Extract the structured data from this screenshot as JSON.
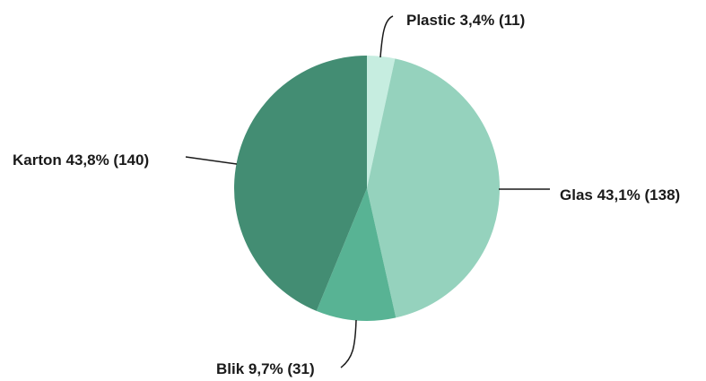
{
  "chart_data": {
    "type": "pie",
    "title": "",
    "slices": [
      {
        "name": "Plastic",
        "percent_label": "3,4%",
        "count": 11,
        "value": 3.4,
        "color": "#c6ede0",
        "label": "Plastic 3,4% (11)"
      },
      {
        "name": "Glas",
        "percent_label": "43,1%",
        "count": 138,
        "value": 43.1,
        "color": "#95d2bd",
        "label": "Glas 43,1% (138)"
      },
      {
        "name": "Blik",
        "percent_label": "9,7%",
        "count": 31,
        "value": 9.7,
        "color": "#58b394",
        "label": "Blik 9,7% (31)"
      },
      {
        "name": "Karton",
        "percent_label": "43,8%",
        "count": 140,
        "value": 43.8,
        "color": "#438d73",
        "label": "Karton 43,8% (140)"
      }
    ],
    "start_angle": "12 o'clock",
    "direction": "clockwise",
    "legend": "none (direct labels with leader lines)"
  }
}
